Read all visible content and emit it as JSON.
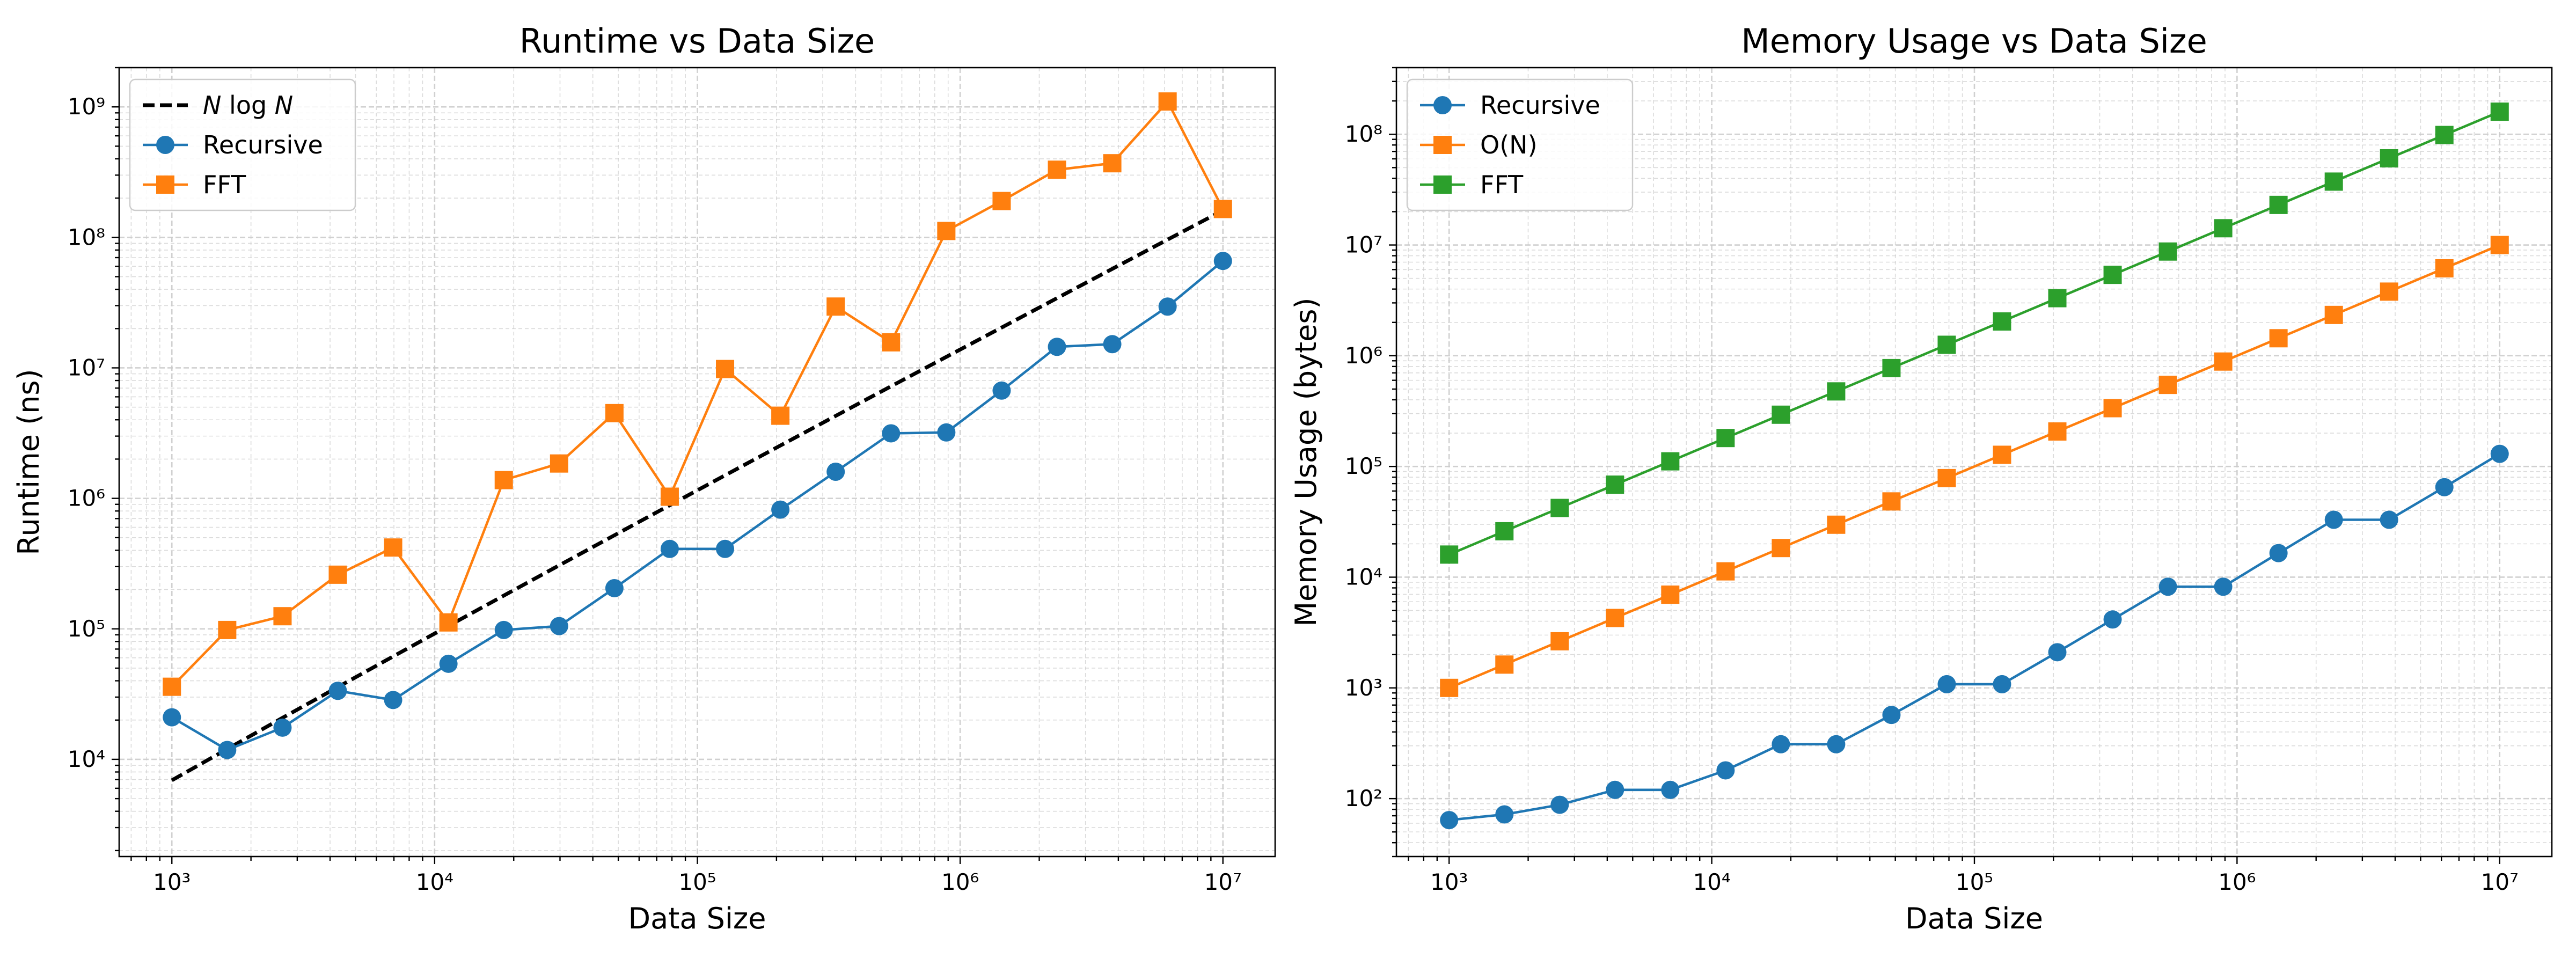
{
  "colors": {
    "recursive": "#1f77b4",
    "fft": "#ff7f0e",
    "on": "#ff7f0e",
    "fft_memory": "#2ca02c",
    "reference": "#000000",
    "grid": "#cccccc"
  },
  "chart_data": [
    {
      "type": "line",
      "title": "Runtime vs Data Size",
      "xlabel": "Data Size",
      "ylabel": "Runtime (ns)",
      "xscale": "log",
      "yscale": "log",
      "xlim": [
        630,
        15800000
      ],
      "ylim": [
        1800,
        2000000000
      ],
      "xticks": [
        1000,
        10000,
        100000,
        1000000,
        10000000
      ],
      "yticks": [
        10000,
        100000,
        1000000,
        10000000,
        100000000,
        1000000000
      ],
      "grid": true,
      "legend": "top-left",
      "x": [
        1000,
        1624,
        2637,
        4281,
        6952,
        11288,
        18330,
        29764,
        48329,
        78476,
        127427,
        206914,
        335982,
        545559,
        885867,
        1438450,
        2335721,
        3792690,
        6158482,
        10000000
      ],
      "series": [
        {
          "name": "N log N",
          "style": "dashed",
          "color": "#000000",
          "values": [
            6908,
            11994,
            20798,
            35785,
            61466,
            105320,
            179846,
            306594,
            521500,
            885700,
            1502000,
            2541000,
            4289000,
            7225000,
            12137000,
            20389000,
            34221000,
            57400000,
            96200000,
            161000000
          ]
        },
        {
          "name": "Recursive",
          "marker": "circle",
          "color": "#1f77b4",
          "values": [
            21000,
            11800,
            17500,
            33500,
            28500,
            54000,
            98000,
            105000,
            205000,
            410000,
            410000,
            820000,
            1600000,
            3150000,
            3200000,
            6700000,
            14500000,
            15200000,
            29500000,
            66000000
          ]
        },
        {
          "name": "FFT",
          "marker": "square",
          "color": "#ff7f0e",
          "values": [
            36000,
            98000,
            125000,
            260000,
            420000,
            112000,
            1380000,
            1850000,
            4500000,
            1030000,
            9800000,
            4300000,
            29500000,
            15700000,
            112000000,
            190000000,
            330000000,
            370000000,
            1100000000,
            165000000
          ]
        }
      ]
    },
    {
      "type": "line",
      "title": "Memory Usage vs Data Size",
      "xlabel": "Data Size",
      "ylabel": "Memory Usage (bytes)",
      "xscale": "log",
      "yscale": "log",
      "xlim": [
        630,
        15800000
      ],
      "ylim": [
        30,
        400000000
      ],
      "xticks": [
        1000,
        10000,
        100000,
        1000000,
        10000000
      ],
      "yticks": [
        100,
        1000,
        10000,
        100000,
        1000000,
        10000000,
        100000000
      ],
      "grid": true,
      "legend": "top-left",
      "x": [
        1000,
        1624,
        2637,
        4281,
        6952,
        11288,
        18330,
        29764,
        48329,
        78476,
        127427,
        206914,
        335982,
        545559,
        885867,
        1438450,
        2335721,
        3792690,
        6158482,
        10000000
      ],
      "series": [
        {
          "name": "Recursive",
          "marker": "circle",
          "color": "#1f77b4",
          "values": [
            64,
            72,
            88,
            120,
            120,
            180,
            310,
            310,
            570,
            1080,
            1080,
            2100,
            4150,
            8200,
            8200,
            16500,
            33000,
            33000,
            65000,
            130000
          ]
        },
        {
          "name": "O(N)",
          "marker": "square",
          "color": "#ff7f0e",
          "values": [
            1000,
            1624,
            2637,
            4281,
            6952,
            11288,
            18330,
            29764,
            48329,
            78476,
            127427,
            206914,
            335982,
            545559,
            885867,
            1438450,
            2335721,
            3792690,
            6158482,
            10000000
          ]
        },
        {
          "name": "FFT",
          "marker": "square",
          "color": "#2ca02c",
          "values": [
            16000,
            25984,
            42192,
            68496,
            111232,
            180608,
            293280,
            476224,
            773264,
            1255616,
            2038832,
            3310624,
            5375712,
            8728944,
            14173872,
            23015200,
            37371536,
            60683040,
            98535712,
            160000000
          ]
        }
      ]
    }
  ]
}
